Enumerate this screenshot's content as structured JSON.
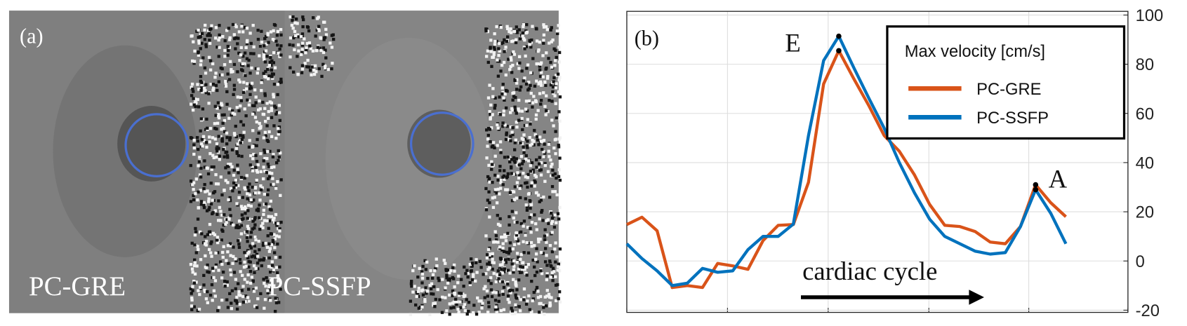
{
  "panel_a": {
    "label": "(a)",
    "images": [
      "PC-GRE",
      "PC-SSFP"
    ]
  },
  "chart_data": {
    "type": "line",
    "panel_label": "(b)",
    "x": [
      0,
      1,
      2,
      3,
      4,
      5,
      6,
      7,
      8,
      9,
      10,
      11,
      12,
      13,
      14,
      15,
      16,
      17,
      18,
      19,
      20,
      21,
      22,
      23,
      24,
      25,
      26,
      27,
      28,
      29
    ],
    "series": [
      {
        "name": "PC-GRE",
        "color": "#d95319",
        "values": [
          14.8,
          17.8,
          12.3,
          -10.8,
          -10,
          -10.8,
          -1,
          -2,
          -3.4,
          8.3,
          14.5,
          14.8,
          32,
          72,
          85.5,
          74,
          63,
          51,
          44.6,
          35,
          23,
          14.5,
          14,
          12,
          7.7,
          7,
          14,
          31,
          23.7,
          18
        ]
      },
      {
        "name": "PC-SSFP",
        "color": "#0072bd",
        "values": [
          7,
          1,
          -4,
          -10,
          -9,
          -3,
          -4.6,
          -4,
          4.6,
          10,
          10,
          15,
          51,
          81.5,
          91.4,
          78.5,
          66,
          54,
          40,
          27.7,
          17,
          10,
          7,
          4,
          2.8,
          3.4,
          14,
          29,
          19.4,
          7
        ]
      }
    ],
    "xlim": [
      0,
      33.1
    ],
    "xticks": [
      0,
      6.65,
      13.3,
      19.95,
      26.55,
      33.1
    ],
    "ylim": [
      -20.9,
      101.5
    ],
    "yticks": [
      -20,
      0,
      20,
      40,
      60,
      80,
      100
    ],
    "grid": true,
    "legend_title": "Max velocity [cm/s]",
    "legend_position": "upper right",
    "annotations": [
      "E",
      "A"
    ],
    "arrow_label": "cardiac cycle"
  }
}
